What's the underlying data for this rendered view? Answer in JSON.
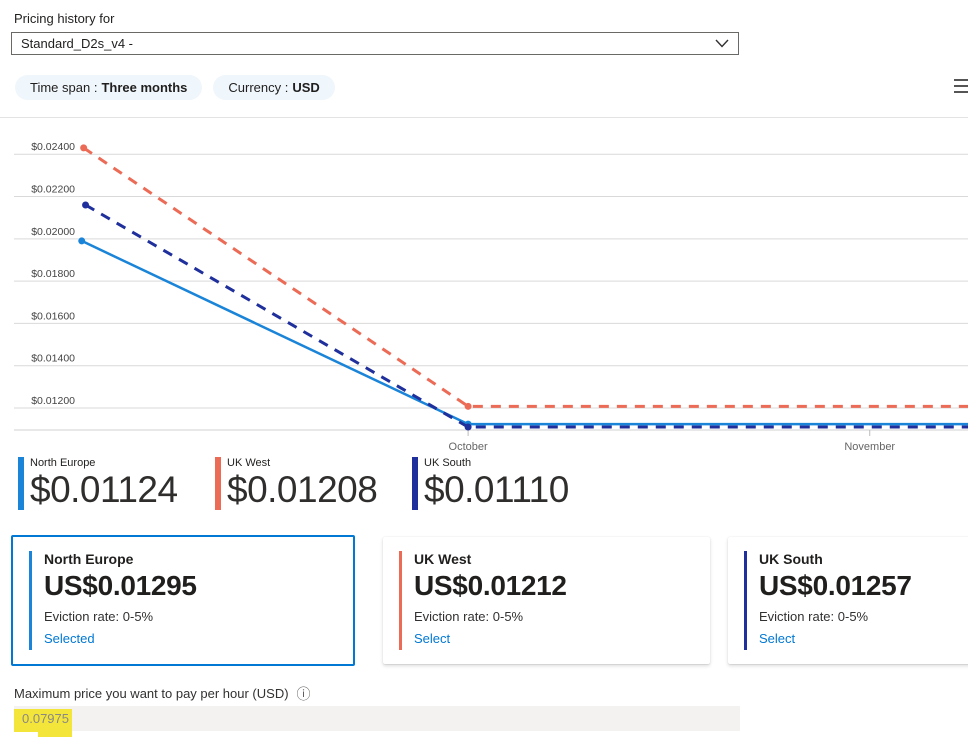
{
  "header": {
    "label": "Pricing history for",
    "vm_size_dropdown": {
      "value": "Standard_D2s_v4 -"
    },
    "filters": [
      {
        "label": "Time span :",
        "value": "Three months"
      },
      {
        "label": "Currency :",
        "value": "USD"
      }
    ]
  },
  "chart_data": {
    "type": "line",
    "grid": true,
    "legend_position": "bottom",
    "ylim": [
      0.01096,
      0.02576
    ],
    "y_ticks": [
      {
        "value": 0.012,
        "label": "$0.01200"
      },
      {
        "value": 0.014,
        "label": "$0.01400"
      },
      {
        "value": 0.016,
        "label": "$0.01600"
      },
      {
        "value": 0.018,
        "label": "$0.01800"
      },
      {
        "value": 0.02,
        "label": "$0.02000"
      },
      {
        "value": 0.022,
        "label": "$0.02200"
      },
      {
        "value": 0.024,
        "label": "$0.02400"
      }
    ],
    "x_labels": [
      {
        "text": "October",
        "pos": 0.476
      },
      {
        "text": "November",
        "pos": 0.897
      }
    ],
    "series": [
      {
        "name": "UK West",
        "color": "#ec6b56",
        "style": "dashed",
        "points": [
          {
            "x": 0.073,
            "value": 0.0243
          },
          {
            "x": 0.476,
            "value": 0.01208
          },
          {
            "x": 1.0,
            "value": 0.01208
          }
        ]
      },
      {
        "name": "North Europe",
        "color": "#1a84d8",
        "style": "solid",
        "points": [
          {
            "x": 0.071,
            "value": 0.0199
          },
          {
            "x": 0.476,
            "value": 0.01124
          },
          {
            "x": 1.0,
            "value": 0.01124
          }
        ]
      },
      {
        "name": "UK South",
        "color": "#1f2f9c",
        "style": "dashed",
        "points": [
          {
            "x": 0.075,
            "value": 0.0216
          },
          {
            "x": 0.476,
            "value": 0.0111
          },
          {
            "x": 1.0,
            "value": 0.0111
          }
        ]
      }
    ]
  },
  "legend": {
    "items": [
      {
        "name": "North Europe",
        "value": "$0.01124",
        "color": "#1a84d8"
      },
      {
        "name": "UK West",
        "value": "$0.01208",
        "color": "#ec6b56"
      },
      {
        "name": "UK South",
        "value": "$0.01110",
        "color": "#1f2f9c"
      }
    ]
  },
  "region_cards": [
    {
      "region": "North Europe",
      "price": "US$0.01295",
      "eviction_rate": "Eviction rate: 0-5%",
      "action": "Selected",
      "accent": "#1a84d8",
      "selected": true
    },
    {
      "region": "UK West",
      "price": "US$0.01212",
      "eviction_rate": "Eviction rate: 0-5%",
      "action": "Select",
      "accent": "#ec6b56",
      "selected": false
    },
    {
      "region": "UK South",
      "price": "US$0.01257",
      "eviction_rate": "Eviction rate: 0-5%",
      "action": "Select",
      "accent": "#1f2f9c",
      "selected": false
    }
  ],
  "max_price": {
    "label": "Maximum price you want to pay per hour (USD)",
    "value": "0.07975",
    "info_icon": "ⓘ"
  }
}
